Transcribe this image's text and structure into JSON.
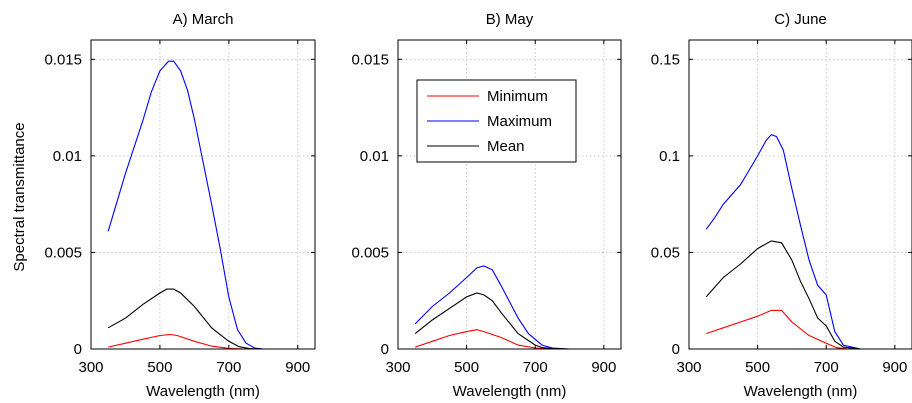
{
  "figure": {
    "ylabel": "Spectral transmittance",
    "legend": {
      "placement": "inside panel B, top center",
      "entries": [
        {
          "name": "Minimum",
          "color": "#ff0000"
        },
        {
          "name": "Maximum",
          "color": "#0000ff"
        },
        {
          "name": "Mean",
          "color": "#000000"
        }
      ]
    }
  },
  "chart_data": [
    {
      "type": "line",
      "title": "A) March",
      "xlabel": "Wavelength (nm)",
      "ylabel": "Spectral transmittance",
      "xlim": [
        300,
        950
      ],
      "ylim": [
        0,
        0.016
      ],
      "xticks": [
        300,
        500,
        700,
        900
      ],
      "xtick_labels": [
        "300",
        "500",
        "700",
        "900"
      ],
      "yticks": [
        0,
        0.005,
        0.01,
        0.015
      ],
      "ytick_labels": [
        "0",
        "0.005",
        "0.01",
        "0.015"
      ],
      "grid": true,
      "series": [
        {
          "name": "Minimum",
          "color": "#ff0000",
          "x": [
            350,
            400,
            450,
            500,
            530,
            550,
            600,
            650,
            700,
            750,
            800,
            850,
            900,
            920
          ],
          "y": [
            0.0001,
            0.0003,
            0.0005,
            0.0007,
            0.00075,
            0.0007,
            0.0004,
            0.00015,
            3e-05,
            0.0,
            0.0,
            0.0,
            0.0,
            0.0
          ]
        },
        {
          "name": "Maximum",
          "color": "#0000ff",
          "x": [
            350,
            400,
            450,
            475,
            500,
            525,
            540,
            560,
            580,
            600,
            625,
            650,
            675,
            700,
            725,
            750,
            775,
            800,
            850,
            900,
            920
          ],
          "y": [
            0.0061,
            0.0091,
            0.0118,
            0.0133,
            0.0144,
            0.0149,
            0.0149,
            0.0144,
            0.0134,
            0.0119,
            0.0097,
            0.0075,
            0.0052,
            0.0027,
            0.001,
            0.0003,
            5e-05,
            0.0,
            0.0,
            0.0,
            0.0
          ]
        },
        {
          "name": "Mean",
          "color": "#000000",
          "x": [
            350,
            400,
            450,
            500,
            520,
            540,
            560,
            600,
            650,
            700,
            730,
            760,
            800,
            850,
            900,
            920
          ],
          "y": [
            0.0011,
            0.0016,
            0.0023,
            0.0029,
            0.0031,
            0.0031,
            0.0029,
            0.0022,
            0.0011,
            0.0004,
            0.00012,
            2e-05,
            0.0,
            0.0,
            0.0,
            0.0
          ]
        }
      ]
    },
    {
      "type": "line",
      "title": "B) May",
      "xlabel": "Wavelength (nm)",
      "xlim": [
        300,
        950
      ],
      "ylim": [
        0,
        0.016
      ],
      "xticks": [
        300,
        500,
        700,
        900
      ],
      "xtick_labels": [
        "300",
        "500",
        "700",
        "900"
      ],
      "yticks": [
        0,
        0.005,
        0.01,
        0.015
      ],
      "ytick_labels": [
        "0",
        "0.005",
        "0.01",
        "0.015"
      ],
      "grid": true,
      "series": [
        {
          "name": "Minimum",
          "color": "#ff0000",
          "x": [
            350,
            400,
            450,
            500,
            530,
            550,
            600,
            650,
            700,
            750,
            800,
            850,
            900
          ],
          "y": [
            0.0001,
            0.0004,
            0.0007,
            0.0009,
            0.001,
            0.0009,
            0.0006,
            0.0002,
            5e-05,
            0.0,
            0.0,
            0.0,
            0.0
          ]
        },
        {
          "name": "Maximum",
          "color": "#0000ff",
          "x": [
            350,
            400,
            450,
            500,
            530,
            550,
            575,
            600,
            650,
            680,
            700,
            720,
            750,
            800,
            850,
            900
          ],
          "y": [
            0.0013,
            0.0022,
            0.0029,
            0.0037,
            0.0042,
            0.0043,
            0.0041,
            0.0033,
            0.0016,
            0.0008,
            0.0005,
            0.0002,
            5e-05,
            0.0,
            0.0,
            0.0
          ]
        },
        {
          "name": "Mean",
          "color": "#000000",
          "x": [
            350,
            400,
            450,
            500,
            530,
            550,
            575,
            600,
            650,
            700,
            720,
            750,
            800,
            850,
            900
          ],
          "y": [
            0.0008,
            0.0015,
            0.0021,
            0.0027,
            0.0029,
            0.0028,
            0.0025,
            0.0019,
            0.0008,
            0.0002,
            8e-05,
            2e-05,
            0.0,
            0.0,
            0.0
          ]
        }
      ]
    },
    {
      "type": "line",
      "title": "C) June",
      "xlabel": "Wavelength (nm)",
      "xlim": [
        300,
        950
      ],
      "ylim": [
        0,
        0.16
      ],
      "xticks": [
        300,
        500,
        700,
        900
      ],
      "xtick_labels": [
        "300",
        "500",
        "700",
        "900"
      ],
      "yticks": [
        0,
        0.05,
        0.1,
        0.15
      ],
      "ytick_labels": [
        "0",
        "0.05",
        "0.1",
        "0.15"
      ],
      "grid": true,
      "series": [
        {
          "name": "Minimum",
          "color": "#ff0000",
          "x": [
            350,
            400,
            450,
            500,
            540,
            570,
            600,
            650,
            700,
            730,
            760,
            800,
            850,
            900,
            920
          ],
          "y": [
            0.008,
            0.011,
            0.014,
            0.017,
            0.02,
            0.02,
            0.014,
            0.007,
            0.003,
            0.0007,
            0.0001,
            0.0,
            0.0,
            0.0,
            0.0
          ]
        },
        {
          "name": "Maximum",
          "color": "#0000ff",
          "x": [
            350,
            375,
            400,
            450,
            500,
            525,
            540,
            555,
            575,
            600,
            625,
            650,
            675,
            700,
            725,
            750,
            800,
            850,
            900,
            920
          ],
          "y": [
            0.062,
            0.068,
            0.075,
            0.085,
            0.1,
            0.108,
            0.111,
            0.11,
            0.103,
            0.083,
            0.064,
            0.046,
            0.033,
            0.028,
            0.009,
            0.002,
            0.0,
            0.0,
            0.0,
            0.0
          ]
        },
        {
          "name": "Mean",
          "color": "#000000",
          "x": [
            350,
            400,
            450,
            500,
            540,
            570,
            600,
            625,
            650,
            675,
            700,
            725,
            750,
            800,
            850,
            900,
            920
          ],
          "y": [
            0.027,
            0.037,
            0.044,
            0.052,
            0.056,
            0.055,
            0.046,
            0.035,
            0.026,
            0.016,
            0.012,
            0.004,
            0.001,
            0.0,
            0.0,
            0.0,
            0.0
          ]
        }
      ]
    }
  ]
}
